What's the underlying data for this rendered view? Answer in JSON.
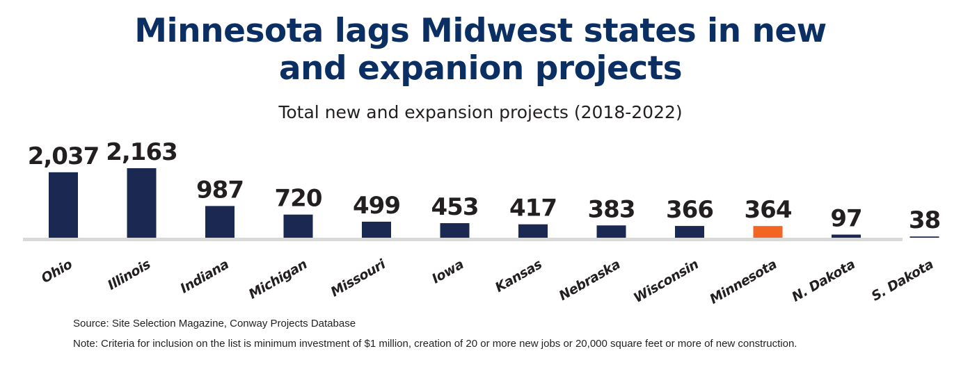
{
  "title_lines": [
    "Minnesota lags Midwest states in new",
    "and expanion projects"
  ],
  "chart_data": {
    "type": "bar",
    "title": "Minnesota lags Midwest states in new and expanion projects",
    "subtitle": "Total new and expansion projects (2018-2022)",
    "categories": [
      "Ohio",
      "Illinois",
      "Indiana",
      "Michigan",
      "Missouri",
      "Iowa",
      "Kansas",
      "Nebraska",
      "Wisconsin",
      "Minnesota",
      "N. Dakota",
      "S. Dakota"
    ],
    "values": [
      2037,
      2163,
      987,
      720,
      499,
      453,
      417,
      383,
      366,
      364,
      97,
      38
    ],
    "value_labels": [
      "2,037",
      "2,163",
      "987",
      "720",
      "499",
      "453",
      "417",
      "383",
      "366",
      "364",
      "97",
      "38"
    ],
    "highlight": "Minnesota",
    "colors": {
      "bar": "#1a2852",
      "highlight": "#f26522",
      "axis": "#d9d9d9",
      "title": "#0b2f63",
      "text": "#231f20"
    },
    "grid": false,
    "legend": "none"
  },
  "source": "Source: Site Selection Magazine, Conway Projects Database",
  "note": "Note: Criteria for inclusion on the list is minimum investment of $1 million, creation of 20 or more new jobs or 20,000 square feet or more of new construction."
}
